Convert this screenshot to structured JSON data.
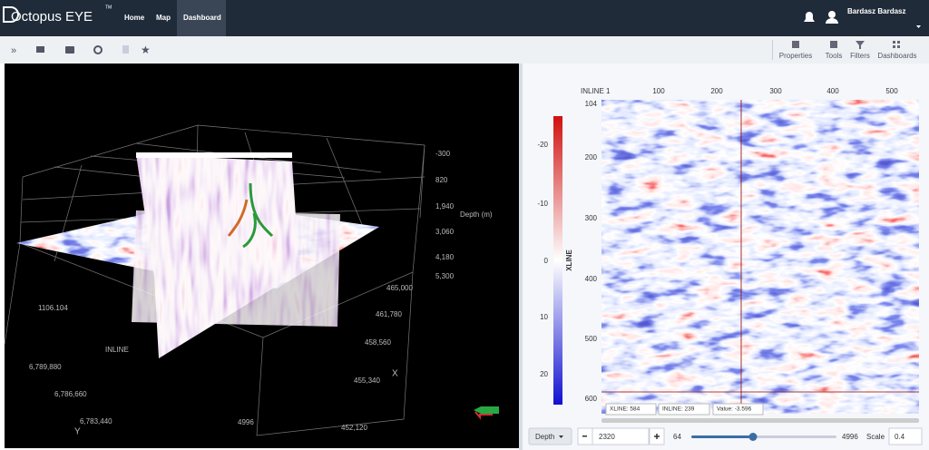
{
  "header": {
    "logo": "Octopus EYE",
    "trademark": "TM",
    "nav": [
      "Home",
      "Map",
      "Dashboard"
    ],
    "user": "Bardasz Bardasz"
  },
  "toolbar": {
    "buttons": [
      "Properties",
      "Tools",
      "Filters",
      "Dashboards"
    ]
  },
  "view3d": {
    "depth_label": "Depth (m)",
    "depth_ticks": [
      "-300",
      "820",
      "1,940",
      "3,060",
      "4,180",
      "5,300"
    ],
    "x_label": "X",
    "x_ticks": [
      "465,000",
      "461,780",
      "458,560",
      "455,340",
      "452,120"
    ],
    "y_label": "Y",
    "y_ticks": [
      "6,789,880",
      "6,786,660",
      "6,783,440"
    ],
    "inline_label": "INLINE",
    "inline_value": "1106.104",
    "bottom_value": "4996"
  },
  "section": {
    "inline_label": "INLINE 1",
    "inline_ticks": [
      "100",
      "200",
      "300",
      "400",
      "500"
    ],
    "xline_ticks": [
      "104",
      "200",
      "300",
      "400",
      "500",
      "600"
    ],
    "colorbar_label": "XLINE",
    "colorbar_ticks": [
      "-20",
      "-10",
      "0",
      "10",
      "20"
    ],
    "readout": [
      "XLINE: 584",
      "INLINE: 239",
      "Value: -3.596"
    ]
  },
  "controls": {
    "axis": "Depth",
    "depth": "2320",
    "step": "64",
    "max": "4996",
    "scale_label": "Scale",
    "scale": "0.4"
  }
}
